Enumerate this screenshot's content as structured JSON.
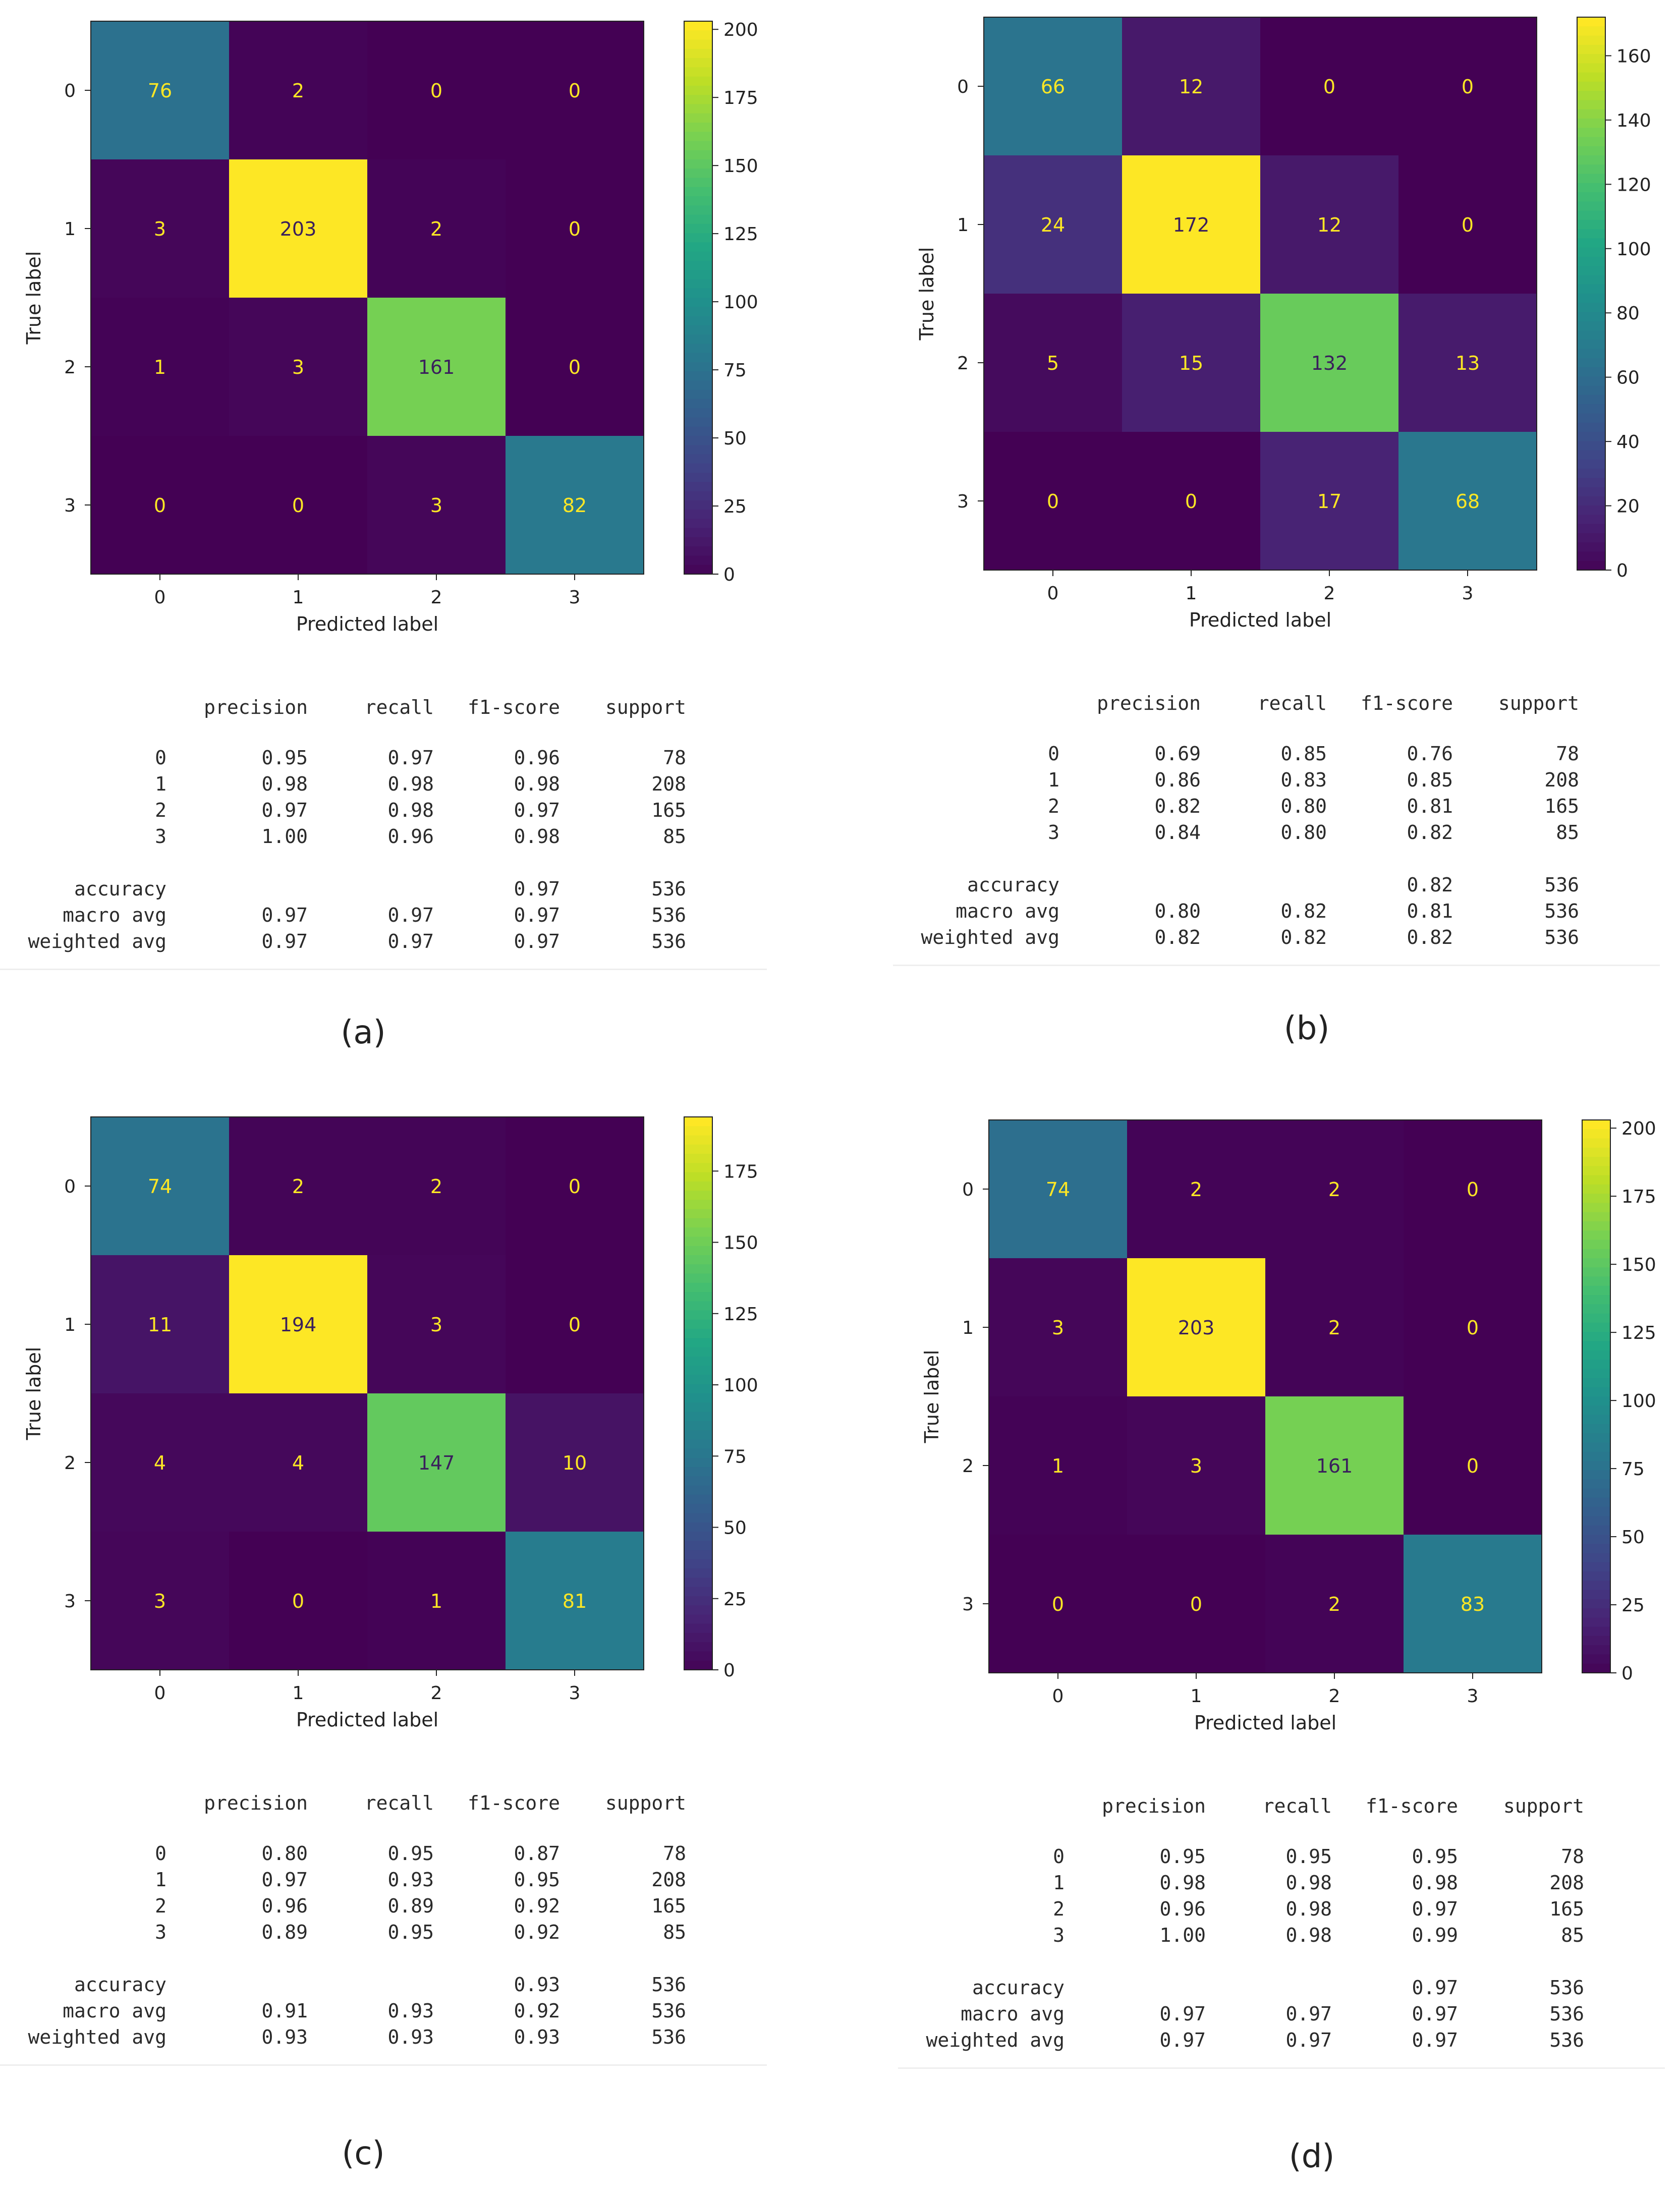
{
  "common": {
    "xlabel": "Predicted label",
    "ylabel": "True label",
    "class_labels": [
      "0",
      "1",
      "2",
      "3"
    ],
    "report_headers": [
      "precision",
      "recall",
      "f1-score",
      "support"
    ],
    "summary_row_labels": [
      "accuracy",
      "macro avg",
      "weighted avg"
    ]
  },
  "chart_data": [
    {
      "type": "heatmap",
      "caption": "(a)",
      "title": "",
      "xlabel": "Predicted label",
      "ylabel": "True label",
      "x_categories": [
        "0",
        "1",
        "2",
        "3"
      ],
      "y_categories": [
        "0",
        "1",
        "2",
        "3"
      ],
      "matrix": [
        [
          76,
          2,
          0,
          0
        ],
        [
          3,
          203,
          2,
          0
        ],
        [
          1,
          3,
          161,
          0
        ],
        [
          0,
          0,
          3,
          82
        ]
      ],
      "colorbar": {
        "colormap": "viridis",
        "min": 0,
        "max": 203,
        "ticks": [
          "0",
          "25",
          "50",
          "75",
          "100",
          "125",
          "150",
          "175",
          "200"
        ]
      },
      "report": {
        "rows": [
          {
            "label": "0",
            "precision": "0.95",
            "recall": "0.97",
            "f1": "0.96",
            "support": "78"
          },
          {
            "label": "1",
            "precision": "0.98",
            "recall": "0.98",
            "f1": "0.98",
            "support": "208"
          },
          {
            "label": "2",
            "precision": "0.97",
            "recall": "0.98",
            "f1": "0.97",
            "support": "165"
          },
          {
            "label": "3",
            "precision": "1.00",
            "recall": "0.96",
            "f1": "0.98",
            "support": "85"
          }
        ],
        "accuracy": {
          "f1": "0.97",
          "support": "536"
        },
        "macro": {
          "precision": "0.97",
          "recall": "0.97",
          "f1": "0.97",
          "support": "536"
        },
        "weighted": {
          "precision": "0.97",
          "recall": "0.97",
          "f1": "0.97",
          "support": "536"
        }
      }
    },
    {
      "type": "heatmap",
      "caption": "(b)",
      "title": "",
      "xlabel": "Predicted label",
      "ylabel": "True label",
      "x_categories": [
        "0",
        "1",
        "2",
        "3"
      ],
      "y_categories": [
        "0",
        "1",
        "2",
        "3"
      ],
      "matrix": [
        [
          66,
          12,
          0,
          0
        ],
        [
          24,
          172,
          12,
          0
        ],
        [
          5,
          15,
          132,
          13
        ],
        [
          0,
          0,
          17,
          68
        ]
      ],
      "colorbar": {
        "colormap": "viridis",
        "min": 0,
        "max": 172,
        "ticks": [
          "0",
          "20",
          "40",
          "60",
          "80",
          "100",
          "120",
          "140",
          "160"
        ]
      },
      "report": {
        "rows": [
          {
            "label": "0",
            "precision": "0.69",
            "recall": "0.85",
            "f1": "0.76",
            "support": "78"
          },
          {
            "label": "1",
            "precision": "0.86",
            "recall": "0.83",
            "f1": "0.85",
            "support": "208"
          },
          {
            "label": "2",
            "precision": "0.82",
            "recall": "0.80",
            "f1": "0.81",
            "support": "165"
          },
          {
            "label": "3",
            "precision": "0.84",
            "recall": "0.80",
            "f1": "0.82",
            "support": "85"
          }
        ],
        "accuracy": {
          "f1": "0.82",
          "support": "536"
        },
        "macro": {
          "precision": "0.80",
          "recall": "0.82",
          "f1": "0.81",
          "support": "536"
        },
        "weighted": {
          "precision": "0.82",
          "recall": "0.82",
          "f1": "0.82",
          "support": "536"
        }
      }
    },
    {
      "type": "heatmap",
      "caption": "(c)",
      "title": "",
      "xlabel": "Predicted label",
      "ylabel": "True label",
      "x_categories": [
        "0",
        "1",
        "2",
        "3"
      ],
      "y_categories": [
        "0",
        "1",
        "2",
        "3"
      ],
      "matrix": [
        [
          74,
          2,
          2,
          0
        ],
        [
          11,
          194,
          3,
          0
        ],
        [
          4,
          4,
          147,
          10
        ],
        [
          3,
          0,
          1,
          81
        ]
      ],
      "colorbar": {
        "colormap": "viridis",
        "min": 0,
        "max": 194,
        "ticks": [
          "0",
          "25",
          "50",
          "75",
          "100",
          "125",
          "150",
          "175"
        ]
      },
      "report": {
        "rows": [
          {
            "label": "0",
            "precision": "0.80",
            "recall": "0.95",
            "f1": "0.87",
            "support": "78"
          },
          {
            "label": "1",
            "precision": "0.97",
            "recall": "0.93",
            "f1": "0.95",
            "support": "208"
          },
          {
            "label": "2",
            "precision": "0.96",
            "recall": "0.89",
            "f1": "0.92",
            "support": "165"
          },
          {
            "label": "3",
            "precision": "0.89",
            "recall": "0.95",
            "f1": "0.92",
            "support": "85"
          }
        ],
        "accuracy": {
          "f1": "0.93",
          "support": "536"
        },
        "macro": {
          "precision": "0.91",
          "recall": "0.93",
          "f1": "0.92",
          "support": "536"
        },
        "weighted": {
          "precision": "0.93",
          "recall": "0.93",
          "f1": "0.93",
          "support": "536"
        }
      }
    },
    {
      "type": "heatmap",
      "caption": "(d)",
      "title": "",
      "xlabel": "Predicted label",
      "ylabel": "True label",
      "x_categories": [
        "0",
        "1",
        "2",
        "3"
      ],
      "y_categories": [
        "0",
        "1",
        "2",
        "3"
      ],
      "matrix": [
        [
          74,
          2,
          2,
          0
        ],
        [
          3,
          203,
          2,
          0
        ],
        [
          1,
          3,
          161,
          0
        ],
        [
          0,
          0,
          2,
          83
        ]
      ],
      "colorbar": {
        "colormap": "viridis",
        "min": 0,
        "max": 203,
        "ticks": [
          "0",
          "25",
          "50",
          "75",
          "100",
          "125",
          "150",
          "175",
          "200"
        ]
      },
      "report": {
        "rows": [
          {
            "label": "0",
            "precision": "0.95",
            "recall": "0.95",
            "f1": "0.95",
            "support": "78"
          },
          {
            "label": "1",
            "precision": "0.98",
            "recall": "0.98",
            "f1": "0.98",
            "support": "208"
          },
          {
            "label": "2",
            "precision": "0.96",
            "recall": "0.98",
            "f1": "0.97",
            "support": "165"
          },
          {
            "label": "3",
            "precision": "1.00",
            "recall": "0.98",
            "f1": "0.99",
            "support": "85"
          }
        ],
        "accuracy": {
          "f1": "0.97",
          "support": "536"
        },
        "macro": {
          "precision": "0.97",
          "recall": "0.97",
          "f1": "0.97",
          "support": "536"
        },
        "weighted": {
          "precision": "0.97",
          "recall": "0.97",
          "f1": "0.97",
          "support": "536"
        }
      }
    }
  ]
}
